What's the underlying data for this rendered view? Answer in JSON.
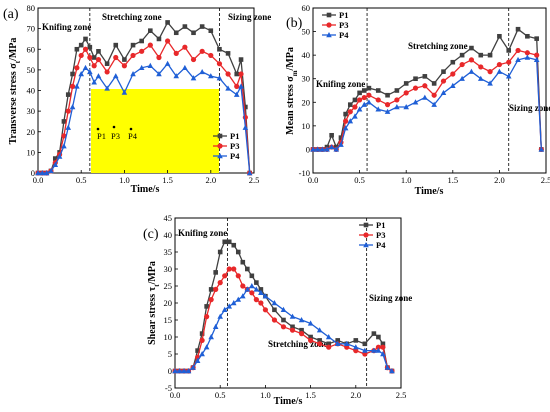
{
  "chart_data": [
    {
      "type": "line",
      "panel_label": "(a)",
      "ylabel": "Transverse stress σ",
      "ylabel_sub": "t",
      "ylabel_unit": "/MPa",
      "xlabel": "Time/s",
      "xlim": [
        0,
        2.5
      ],
      "ylim": [
        0,
        80
      ],
      "x_ticks": [
        "0.0",
        "0.5",
        "1.0",
        "1.5",
        "2.0",
        "2.5"
      ],
      "y_ticks": [
        "0",
        "10",
        "20",
        "30",
        "40",
        "50",
        "60",
        "70",
        "80"
      ],
      "x_tick_values": [
        0,
        0.5,
        1.0,
        1.5,
        2.0,
        2.5
      ],
      "y_tick_values": [
        0,
        10,
        20,
        30,
        40,
        50,
        60,
        70,
        80
      ],
      "vlines": [
        0.6,
        2.1
      ],
      "zones": [
        "Knifing zone",
        "Stretching zone",
        "Sizing zone"
      ],
      "inset": {
        "labels": [
          "P1",
          "P3",
          "P4"
        ],
        "color": "#ffff00"
      },
      "series": [
        {
          "name": "P1",
          "color": "#404040",
          "marker": "square",
          "x": [
            0,
            0.05,
            0.1,
            0.15,
            0.2,
            0.25,
            0.3,
            0.35,
            0.4,
            0.45,
            0.5,
            0.55,
            0.6,
            0.65,
            0.7,
            0.8,
            0.9,
            1.0,
            1.1,
            1.2,
            1.3,
            1.4,
            1.5,
            1.6,
            1.7,
            1.8,
            1.9,
            2.0,
            2.1,
            2.2,
            2.3,
            2.35,
            2.4,
            2.45
          ],
          "y": [
            0,
            0,
            0,
            1,
            7,
            10,
            25,
            38,
            48,
            60,
            62,
            65,
            61,
            56,
            59,
            53,
            62,
            55,
            62,
            64,
            69,
            65,
            73,
            68,
            71,
            68,
            71,
            69,
            60,
            58,
            48,
            55,
            32,
            0
          ]
        },
        {
          "name": "P3",
          "color": "#e8282a",
          "marker": "circle",
          "x": [
            0,
            0.05,
            0.1,
            0.15,
            0.2,
            0.25,
            0.3,
            0.35,
            0.4,
            0.45,
            0.5,
            0.55,
            0.6,
            0.65,
            0.7,
            0.8,
            0.9,
            1.0,
            1.1,
            1.2,
            1.3,
            1.4,
            1.5,
            1.6,
            1.7,
            1.8,
            1.9,
            2.0,
            2.1,
            2.2,
            2.3,
            2.35,
            2.4,
            2.45
          ],
          "y": [
            0,
            0,
            0,
            1,
            5,
            9,
            18,
            30,
            42,
            51,
            57,
            60,
            56,
            52,
            55,
            49,
            56,
            52,
            57,
            59,
            62,
            56,
            64,
            58,
            61,
            55,
            59,
            57,
            53,
            48,
            42,
            48,
            27,
            0
          ]
        },
        {
          "name": "P4",
          "color": "#1f5fd6",
          "marker": "triangle",
          "x": [
            0,
            0.05,
            0.1,
            0.15,
            0.2,
            0.25,
            0.3,
            0.35,
            0.4,
            0.45,
            0.5,
            0.55,
            0.6,
            0.65,
            0.7,
            0.8,
            0.9,
            1.0,
            1.1,
            1.2,
            1.3,
            1.4,
            1.5,
            1.6,
            1.7,
            1.8,
            1.9,
            2.0,
            2.1,
            2.2,
            2.3,
            2.35,
            2.4,
            2.45
          ],
          "y": [
            0,
            0,
            0,
            1,
            4,
            8,
            13,
            22,
            32,
            42,
            48,
            51,
            49,
            44,
            47,
            41,
            47,
            39,
            48,
            51,
            52,
            48,
            53,
            47,
            51,
            46,
            49,
            47,
            46,
            41,
            38,
            42,
            22,
            0
          ]
        }
      ]
    },
    {
      "type": "line",
      "panel_label": "(b)",
      "ylabel": "Mean stress σ",
      "ylabel_sub": "m",
      "ylabel_unit": "/MPa",
      "xlabel": "Time/s",
      "xlim": [
        0,
        2.5
      ],
      "ylim": [
        -10,
        60
      ],
      "x_ticks": [
        "0.0",
        "0.5",
        "1.0",
        "1.5",
        "2.0",
        "2.5"
      ],
      "y_ticks": [
        "-10",
        "0",
        "10",
        "20",
        "30",
        "40",
        "50",
        "60"
      ],
      "x_tick_values": [
        0,
        0.5,
        1.0,
        1.5,
        2.0,
        2.5
      ],
      "y_tick_values": [
        -10,
        0,
        10,
        20,
        30,
        40,
        50,
        60
      ],
      "vlines": [
        0.58,
        2.1
      ],
      "zones": [
        "Knifing zone",
        "Stretching zone",
        "Sizing zone"
      ],
      "series": [
        {
          "name": "P1",
          "color": "#404040",
          "marker": "square",
          "x": [
            0,
            0.05,
            0.1,
            0.15,
            0.2,
            0.25,
            0.3,
            0.35,
            0.4,
            0.45,
            0.5,
            0.55,
            0.6,
            0.7,
            0.8,
            0.9,
            1.0,
            1.1,
            1.2,
            1.3,
            1.4,
            1.5,
            1.6,
            1.7,
            1.8,
            1.9,
            2.0,
            2.1,
            2.2,
            2.3,
            2.4,
            2.45
          ],
          "y": [
            0,
            0,
            0,
            1,
            6,
            1,
            5,
            15,
            19,
            21,
            24,
            25,
            26,
            25,
            23,
            25,
            28,
            30,
            31,
            28,
            33,
            37,
            40,
            43,
            40,
            40,
            48,
            42,
            51,
            48,
            47,
            0
          ]
        },
        {
          "name": "P3",
          "color": "#e8282a",
          "marker": "circle",
          "x": [
            0,
            0.05,
            0.1,
            0.15,
            0.2,
            0.25,
            0.3,
            0.35,
            0.4,
            0.45,
            0.5,
            0.55,
            0.6,
            0.7,
            0.8,
            0.9,
            1.0,
            1.1,
            1.2,
            1.3,
            1.4,
            1.5,
            1.6,
            1.7,
            1.8,
            1.9,
            2.0,
            2.1,
            2.2,
            2.3,
            2.4,
            2.45
          ],
          "y": [
            0,
            0,
            0,
            0,
            1,
            0,
            3,
            12,
            16,
            18,
            21,
            22,
            23,
            21,
            19,
            21,
            24,
            26,
            27,
            23,
            29,
            32,
            36,
            38,
            35,
            33,
            36,
            37,
            42,
            41,
            40,
            0
          ]
        },
        {
          "name": "P4",
          "color": "#1f5fd6",
          "marker": "triangle",
          "x": [
            0,
            0.05,
            0.1,
            0.15,
            0.2,
            0.25,
            0.3,
            0.35,
            0.4,
            0.45,
            0.5,
            0.55,
            0.6,
            0.7,
            0.8,
            0.9,
            1.0,
            1.1,
            1.2,
            1.3,
            1.4,
            1.5,
            1.6,
            1.7,
            1.8,
            1.9,
            2.0,
            2.1,
            2.2,
            2.3,
            2.4,
            2.45
          ],
          "y": [
            0,
            0,
            0,
            0,
            1,
            0,
            2,
            9,
            12,
            14,
            17,
            19,
            20,
            17,
            16,
            18,
            18,
            20,
            22,
            19,
            24,
            27,
            30,
            33,
            30,
            28,
            33,
            31,
            38,
            39,
            38,
            0
          ]
        }
      ]
    },
    {
      "type": "line",
      "panel_label": "(c)",
      "ylabel": "Shear stress τ",
      "ylabel_sub": "t",
      "ylabel_unit": "/MPa",
      "xlabel": "Time/s",
      "xlim": [
        0,
        2.5
      ],
      "ylim": [
        -5,
        45
      ],
      "x_ticks": [
        "0.0",
        "0.5",
        "1.0",
        "1.5",
        "2.0",
        "2.5"
      ],
      "y_ticks": [
        "-5",
        "0",
        "5",
        "10",
        "15",
        "20",
        "25",
        "30",
        "35",
        "40",
        "45"
      ],
      "x_tick_values": [
        0,
        0.5,
        1.0,
        1.5,
        2.0,
        2.5
      ],
      "y_tick_values": [
        -5,
        0,
        5,
        10,
        15,
        20,
        25,
        30,
        35,
        40,
        45
      ],
      "vlines": [
        0.58,
        2.12
      ],
      "zones": [
        "Knifing zone",
        "Stretching zone",
        "Sizing zone"
      ],
      "series": [
        {
          "name": "P1",
          "color": "#404040",
          "marker": "square",
          "x": [
            0,
            0.05,
            0.1,
            0.15,
            0.2,
            0.25,
            0.3,
            0.35,
            0.4,
            0.45,
            0.5,
            0.55,
            0.6,
            0.65,
            0.7,
            0.75,
            0.8,
            0.85,
            0.9,
            0.95,
            1.0,
            1.1,
            1.2,
            1.3,
            1.4,
            1.5,
            1.6,
            1.7,
            1.8,
            1.9,
            2.0,
            2.1,
            2.2,
            2.25,
            2.3,
            2.35,
            2.4
          ],
          "y": [
            0,
            0,
            0,
            0,
            1,
            6,
            11,
            19,
            24,
            29,
            35,
            38,
            38,
            37,
            35,
            32,
            30,
            28,
            26,
            24,
            22,
            18,
            15,
            13,
            12,
            10,
            9,
            8,
            9,
            8,
            9,
            8,
            11,
            10,
            8,
            1,
            0
          ]
        },
        {
          "name": "P3",
          "color": "#e8282a",
          "marker": "circle",
          "x": [
            0,
            0.05,
            0.1,
            0.15,
            0.2,
            0.25,
            0.3,
            0.35,
            0.4,
            0.45,
            0.5,
            0.55,
            0.6,
            0.65,
            0.7,
            0.75,
            0.8,
            0.85,
            0.9,
            0.95,
            1.0,
            1.1,
            1.2,
            1.3,
            1.4,
            1.5,
            1.6,
            1.7,
            1.8,
            1.9,
            2.0,
            2.1,
            2.2,
            2.25,
            2.3,
            2.35,
            2.4
          ],
          "y": [
            0,
            0,
            0,
            0,
            1,
            4,
            9,
            16,
            21,
            24,
            26,
            28,
            30,
            30,
            28,
            25,
            24,
            23,
            21,
            20,
            18,
            15,
            13,
            12,
            11,
            9,
            8,
            7,
            8,
            7,
            6,
            5,
            6,
            7,
            7,
            1,
            0
          ]
        },
        {
          "name": "P4",
          "color": "#1f5fd6",
          "marker": "triangle",
          "x": [
            0,
            0.05,
            0.1,
            0.15,
            0.2,
            0.25,
            0.3,
            0.35,
            0.4,
            0.45,
            0.5,
            0.55,
            0.6,
            0.65,
            0.7,
            0.75,
            0.8,
            0.85,
            0.9,
            0.95,
            1.0,
            1.1,
            1.2,
            1.3,
            1.4,
            1.5,
            1.6,
            1.7,
            1.8,
            1.9,
            2.0,
            2.1,
            2.2,
            2.25,
            2.3,
            2.35,
            2.4
          ],
          "y": [
            0,
            0,
            0,
            0,
            1,
            3,
            5,
            7,
            10,
            13,
            16,
            18,
            19,
            20,
            21,
            22,
            24,
            25,
            24,
            23,
            22,
            20,
            18,
            16,
            15,
            14,
            12,
            10,
            8,
            8,
            7,
            6,
            6,
            6,
            5,
            1,
            0
          ]
        }
      ]
    }
  ]
}
